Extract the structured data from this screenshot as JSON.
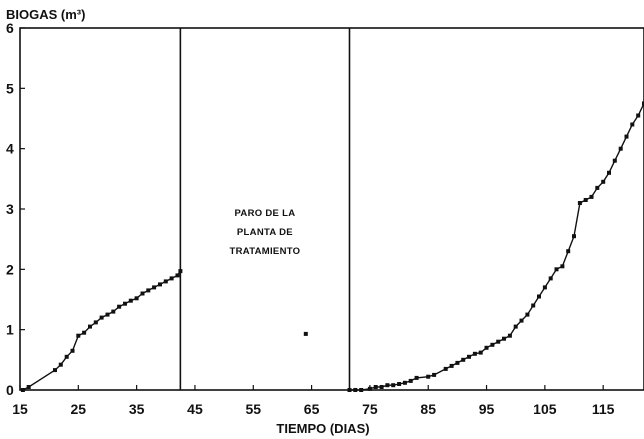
{
  "chart_data": {
    "type": "line",
    "title": "",
    "ylabel": "BIOGAS (m³)",
    "xlabel": "TIEMPO (DIAS)",
    "xlim": [
      15,
      122
    ],
    "ylim": [
      0,
      6
    ],
    "x_ticks": [
      15,
      25,
      35,
      45,
      55,
      65,
      75,
      85,
      95,
      105,
      115
    ],
    "y_ticks": [
      0,
      1,
      2,
      3,
      4,
      5,
      6
    ],
    "grid": false,
    "vertical_lines": [
      42.5,
      71.5
    ],
    "annotation": [
      "PARO DE LA",
      "PLANTA DE",
      "TRATAMIENTO"
    ],
    "series": [
      {
        "points": [
          [
            15.5,
            0.0
          ],
          [
            16.5,
            0.05
          ],
          [
            21,
            0.33
          ],
          [
            22,
            0.42
          ],
          [
            23,
            0.55
          ],
          [
            24,
            0.65
          ],
          [
            25,
            0.9
          ],
          [
            26,
            0.95
          ],
          [
            27,
            1.05
          ],
          [
            28,
            1.12
          ],
          [
            29,
            1.2
          ],
          [
            30,
            1.25
          ],
          [
            31,
            1.3
          ],
          [
            32,
            1.38
          ],
          [
            33,
            1.43
          ],
          [
            34,
            1.48
          ],
          [
            35,
            1.52
          ],
          [
            36,
            1.6
          ],
          [
            37,
            1.65
          ],
          [
            38,
            1.7
          ],
          [
            39,
            1.75
          ],
          [
            40,
            1.8
          ],
          [
            41,
            1.85
          ],
          [
            42,
            1.9
          ],
          [
            42.5,
            1.97
          ]
        ]
      },
      {
        "points": [
          [
            71.5,
            0.0
          ],
          [
            72.5,
            0.0
          ],
          [
            73.5,
            0.0
          ],
          [
            75,
            0.02
          ],
          [
            76,
            0.05
          ],
          [
            77,
            0.05
          ],
          [
            78,
            0.08
          ],
          [
            79,
            0.08
          ],
          [
            80,
            0.1
          ],
          [
            81,
            0.12
          ],
          [
            82,
            0.15
          ],
          [
            83,
            0.2
          ],
          [
            85,
            0.22
          ],
          [
            86,
            0.25
          ],
          [
            88,
            0.35
          ],
          [
            89,
            0.4
          ],
          [
            90,
            0.45
          ],
          [
            91,
            0.5
          ],
          [
            92,
            0.55
          ],
          [
            93,
            0.6
          ],
          [
            94,
            0.62
          ],
          [
            95,
            0.7
          ],
          [
            96,
            0.75
          ],
          [
            97,
            0.8
          ],
          [
            98,
            0.85
          ],
          [
            99,
            0.9
          ],
          [
            100,
            1.05
          ],
          [
            101,
            1.15
          ],
          [
            102,
            1.25
          ],
          [
            103,
            1.4
          ],
          [
            104,
            1.55
          ],
          [
            105,
            1.7
          ],
          [
            106,
            1.85
          ],
          [
            107,
            2.0
          ],
          [
            108,
            2.05
          ],
          [
            109,
            2.3
          ],
          [
            110,
            2.55
          ],
          [
            111,
            3.1
          ],
          [
            112,
            3.15
          ],
          [
            113,
            3.2
          ],
          [
            114,
            3.35
          ],
          [
            115,
            3.45
          ],
          [
            116,
            3.6
          ],
          [
            117,
            3.8
          ],
          [
            118,
            4.0
          ],
          [
            119,
            4.2
          ],
          [
            120,
            4.4
          ],
          [
            121,
            4.55
          ],
          [
            122,
            4.75
          ]
        ]
      },
      {
        "points": [
          [
            64,
            0.93
          ]
        ],
        "isolated": true
      }
    ]
  }
}
